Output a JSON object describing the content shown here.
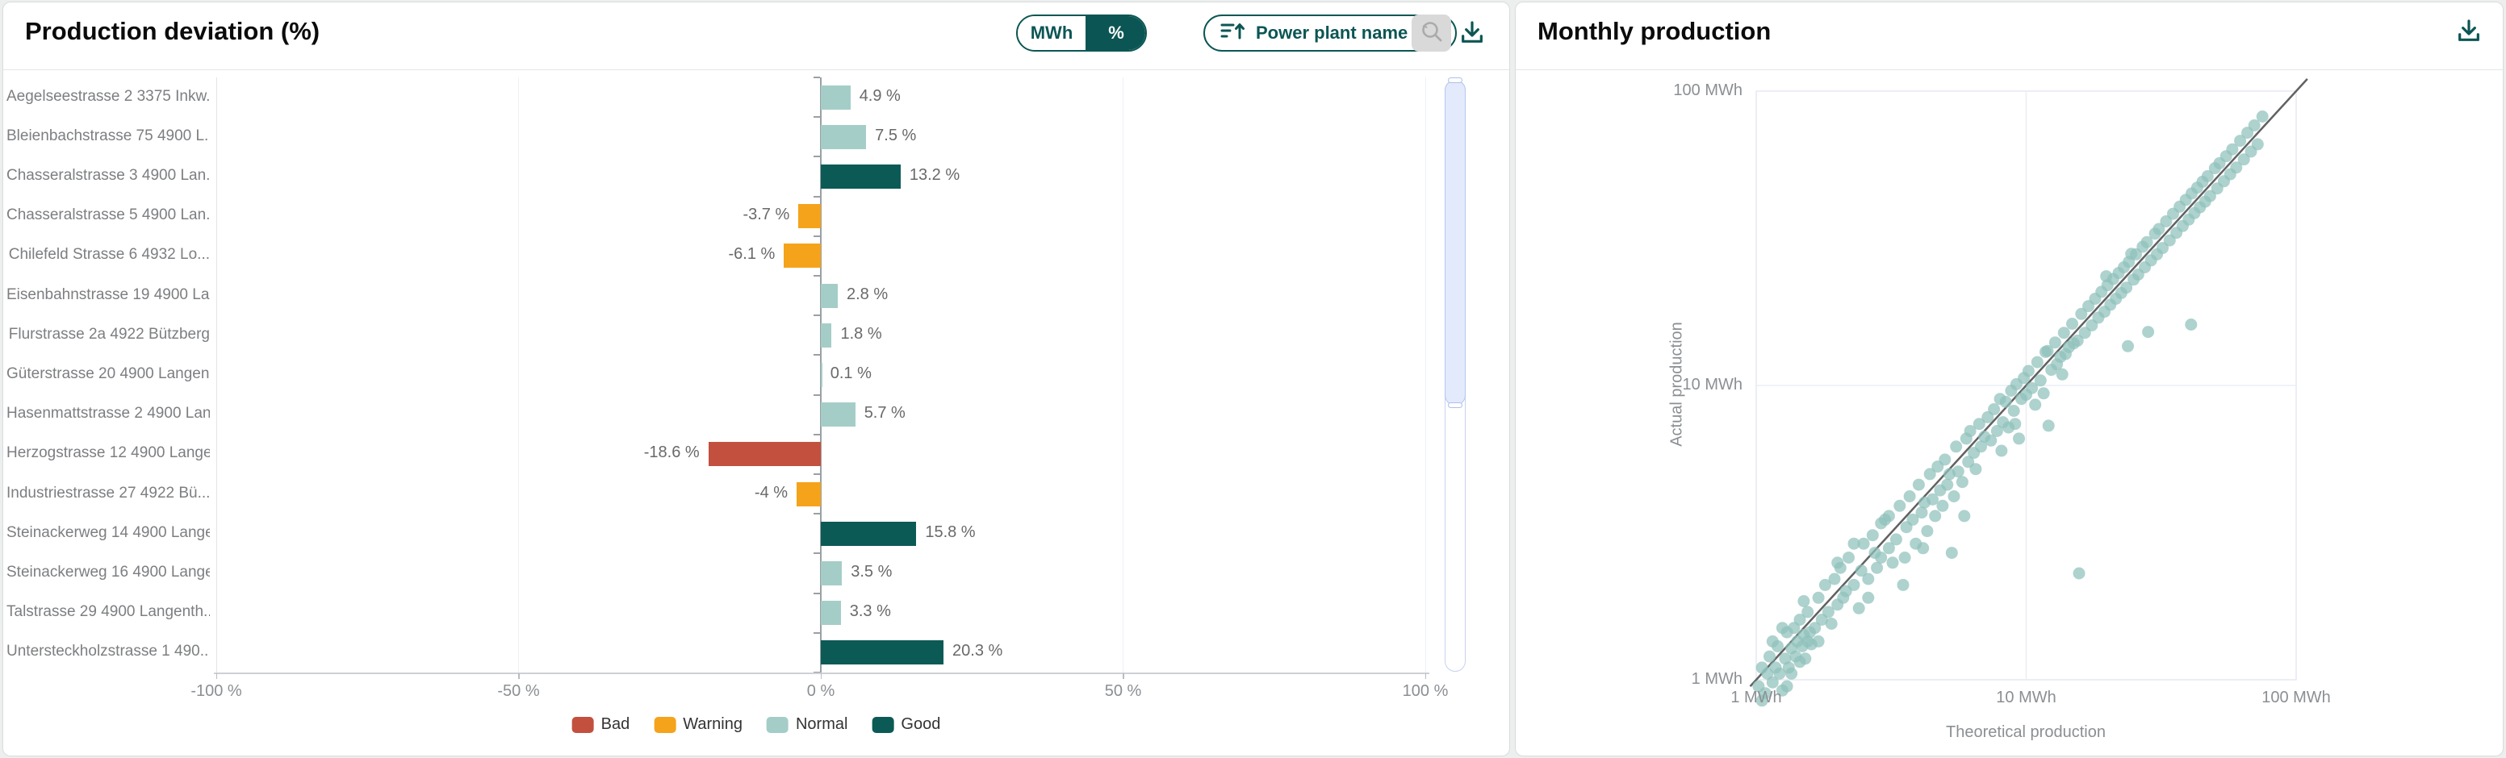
{
  "left_panel": {
    "title": "Production deviation (%)",
    "unit_toggle": {
      "options": [
        "MWh",
        "%"
      ],
      "selected": "%"
    },
    "sort_dropdown": {
      "label": "Power plant name"
    }
  },
  "right_panel": {
    "title": "Monthly production"
  },
  "chart_data": [
    {
      "type": "bar",
      "orientation": "horizontal",
      "title": "Production deviation (%)",
      "categories": [
        "Aegelseestrasse 2 3375 Inkw...",
        "Bleienbachstrasse 75 4900 L...",
        "Chasseralstrasse 3 4900 Lan...",
        "Chasseralstrasse 5 4900 Lan...",
        "Chilefeld Strasse 6 4932 Lo...",
        "Eisenbahnstrasse 19 4900 La...",
        "Flurstrasse 2a 4922 Bützberg",
        "Güterstrasse 20 4900 Langen...",
        "Hasenmattstrasse 2 4900 Lan...",
        "Herzogstrasse 12 4900 Lange...",
        "Industriestrasse 27 4922 Bü...",
        "Steinackerweg 14 4900 Lange...",
        "Steinackerweg 16 4900 Lange...",
        "Talstrasse 29 4900 Langenth...",
        "Untersteckholzstrasse 1 490..."
      ],
      "values": [
        4.9,
        7.5,
        13.2,
        -3.7,
        -6.1,
        2.8,
        1.8,
        0.1,
        5.7,
        -18.6,
        -4,
        15.8,
        3.5,
        3.3,
        20.3
      ],
      "labels": [
        "4.9 %",
        "7.5 %",
        "13.2 %",
        "-3.7 %",
        "-6.1 %",
        "2.8 %",
        "1.8 %",
        "0.1 %",
        "5.7 %",
        "-18.6 %",
        "-4 %",
        "15.8 %",
        "3.5 %",
        "3.3 %",
        "20.3 %"
      ],
      "color_key": [
        "normal",
        "normal",
        "good",
        "warning",
        "warning",
        "normal",
        "normal",
        "normal",
        "normal",
        "bad",
        "warning",
        "good",
        "normal",
        "normal",
        "good"
      ],
      "colors": {
        "bad": "#c3503f",
        "warning": "#f5a31b",
        "normal": "#a5cdc7",
        "good": "#0c5a56"
      },
      "legend": [
        {
          "label": "Bad",
          "color": "#c3503f"
        },
        {
          "label": "Warning",
          "color": "#f5a31b"
        },
        {
          "label": "Normal",
          "color": "#a5cdc7"
        },
        {
          "label": "Good",
          "color": "#0c5a56"
        }
      ],
      "xlim": [
        -100,
        100
      ],
      "x_ticks": [
        "-100 %",
        "-50 %",
        "0 %",
        "50 %",
        "100 %"
      ],
      "x_tick_values": [
        -100,
        -50,
        0,
        50,
        100
      ],
      "grid": "faint vertical"
    },
    {
      "type": "scatter",
      "title": "Monthly production",
      "xlabel": "Theoretical production",
      "ylabel": "Actual production",
      "x_scale": "log",
      "y_scale": "log",
      "xlim": [
        1,
        100
      ],
      "ylim": [
        1,
        100
      ],
      "x_ticks": [
        "1 MWh",
        "10 MWh",
        "100 MWh"
      ],
      "y_ticks": [
        "1 MWh",
        "10 MWh",
        "100 MWh"
      ],
      "x_tick_values": [
        1,
        10,
        100
      ],
      "y_tick_values": [
        1,
        10,
        100
      ],
      "reference_line": "y = x",
      "point_color": "#8fc1bb",
      "points": [
        [
          1.02,
          0.95
        ],
        [
          1.05,
          1.1
        ],
        [
          1.08,
          0.9
        ],
        [
          1.1,
          1.05
        ],
        [
          1.12,
          1.2
        ],
        [
          1.15,
          0.98
        ],
        [
          1.18,
          1.1
        ],
        [
          1.2,
          1.3
        ],
        [
          1.22,
          1.05
        ],
        [
          1.25,
          0.92
        ],
        [
          1.28,
          1.18
        ],
        [
          1.3,
          1.45
        ],
        [
          1.32,
          1.1
        ],
        [
          1.35,
          1.28
        ],
        [
          1.38,
          1.5
        ],
        [
          1.4,
          1.2
        ],
        [
          1.42,
          1.35
        ],
        [
          1.45,
          1.6
        ],
        [
          1.48,
          1.3
        ],
        [
          1.5,
          1.42
        ],
        [
          1.52,
          1.18
        ],
        [
          1.55,
          1.7
        ],
        [
          1.58,
          1.45
        ],
        [
          1.6,
          1.32
        ],
        [
          1.05,
          0.85
        ],
        [
          1.15,
          1.35
        ],
        [
          1.25,
          1.5
        ],
        [
          1.35,
          1.05
        ],
        [
          1.45,
          1.15
        ],
        [
          1.55,
          1.35
        ],
        [
          1.3,
          0.95
        ],
        [
          1.5,
          1.85
        ],
        [
          1.65,
          1.5
        ],
        [
          1.7,
          1.9
        ],
        [
          1.75,
          1.6
        ],
        [
          1.8,
          2.1
        ],
        [
          1.85,
          1.7
        ],
        [
          1.9,
          1.55
        ],
        [
          1.95,
          2.2
        ],
        [
          2.0,
          1.8
        ],
        [
          2.05,
          2.4
        ],
        [
          2.1,
          1.9
        ],
        [
          2.15,
          2.0
        ],
        [
          2.2,
          2.6
        ],
        [
          2.3,
          2.1
        ],
        [
          2.4,
          1.75
        ],
        [
          2.5,
          2.9
        ],
        [
          2.6,
          2.2
        ],
        [
          2.7,
          3.1
        ],
        [
          2.8,
          2.4
        ],
        [
          2.9,
          2.6
        ],
        [
          3.0,
          3.5
        ],
        [
          3.1,
          2.8
        ],
        [
          3.2,
          2.5
        ],
        [
          1.7,
          1.35
        ],
        [
          2.0,
          2.5
        ],
        [
          2.3,
          2.9
        ],
        [
          2.6,
          1.9
        ],
        [
          2.9,
          3.4
        ],
        [
          3.1,
          3.6
        ],
        [
          2.45,
          2.35
        ],
        [
          2.75,
          2.7
        ],
        [
          3.3,
          3.0
        ],
        [
          3.4,
          3.9
        ],
        [
          3.5,
          2.1
        ],
        [
          3.6,
          3.3
        ],
        [
          3.7,
          4.2
        ],
        [
          3.8,
          3.5
        ],
        [
          3.9,
          2.9
        ],
        [
          4.0,
          4.6
        ],
        [
          4.1,
          3.7
        ],
        [
          4.2,
          4.0
        ],
        [
          4.3,
          3.2
        ],
        [
          4.4,
          5.0
        ],
        [
          4.5,
          4.1
        ],
        [
          4.6,
          3.6
        ],
        [
          4.7,
          5.3
        ],
        [
          4.8,
          4.4
        ],
        [
          4.9,
          3.9
        ],
        [
          5.0,
          5.6
        ],
        [
          5.1,
          4.6
        ],
        [
          5.2,
          5.0
        ],
        [
          5.4,
          4.2
        ],
        [
          5.5,
          6.2
        ],
        [
          5.6,
          5.1
        ],
        [
          5.8,
          4.7
        ],
        [
          6.0,
          6.6
        ],
        [
          6.1,
          5.5
        ],
        [
          6.2,
          7.0
        ],
        [
          6.4,
          5.9
        ],
        [
          6.5,
          5.2
        ],
        [
          6.7,
          7.4
        ],
        [
          6.8,
          6.2
        ],
        [
          7.0,
          6.7
        ],
        [
          3.55,
          2.6
        ],
        [
          4.15,
          2.8
        ],
        [
          5.3,
          2.7
        ],
        [
          5.9,
          3.6
        ],
        [
          7.2,
          7.8
        ],
        [
          7.4,
          6.5
        ],
        [
          7.6,
          8.3
        ],
        [
          7.8,
          7.0
        ],
        [
          8.0,
          9.0
        ],
        [
          8.2,
          7.5
        ],
        [
          8.4,
          8.8
        ],
        [
          8.6,
          7.2
        ],
        [
          8.8,
          9.6
        ],
        [
          9.0,
          8.2
        ],
        [
          9.2,
          10.1
        ],
        [
          9.4,
          6.6
        ],
        [
          9.6,
          9.0
        ],
        [
          9.8,
          10.6
        ],
        [
          10.0,
          9.3
        ],
        [
          10.2,
          11.2
        ],
        [
          10.5,
          9.8
        ],
        [
          10.8,
          8.6
        ],
        [
          11.0,
          12.0
        ],
        [
          11.3,
          10.4
        ],
        [
          11.6,
          9.4
        ],
        [
          12.0,
          13.1
        ],
        [
          12.1,
          7.3
        ],
        [
          12.4,
          11.3
        ],
        [
          12.8,
          14.0
        ],
        [
          13.0,
          11.8
        ],
        [
          13.4,
          12.5
        ],
        [
          13.8,
          15.1
        ],
        [
          14.0,
          12.8
        ],
        [
          14.4,
          13.5
        ],
        [
          14.8,
          16.2
        ],
        [
          15.0,
          13.9
        ],
        [
          8.1,
          6.0
        ],
        [
          9.1,
          7.4
        ],
        [
          11.8,
          13.0
        ],
        [
          13.6,
          10.9
        ],
        [
          15.5,
          14.2
        ],
        [
          16.0,
          17.5
        ],
        [
          16.5,
          15.1
        ],
        [
          17.0,
          18.6
        ],
        [
          17.5,
          16.0
        ],
        [
          18.0,
          19.7
        ],
        [
          18.5,
          17.0
        ],
        [
          19.0,
          20.8
        ],
        [
          19.5,
          17.8
        ],
        [
          20.0,
          21.9
        ],
        [
          20.5,
          18.8
        ],
        [
          21.0,
          23.0
        ],
        [
          21.5,
          19.7
        ],
        [
          22.0,
          24.1
        ],
        [
          22.5,
          20.6
        ],
        [
          23.0,
          25.2
        ],
        [
          23.5,
          21.5
        ],
        [
          24.0,
          26.3
        ],
        [
          25.0,
          22.9
        ],
        [
          25.5,
          27.9
        ],
        [
          26.0,
          23.8
        ],
        [
          27.0,
          29.6
        ],
        [
          27.5,
          25.2
        ],
        [
          28.0,
          30.7
        ],
        [
          29.0,
          26.6
        ],
        [
          30.0,
          32.8
        ],
        [
          30.5,
          27.9
        ],
        [
          31.0,
          34.0
        ],
        [
          32.0,
          29.3
        ],
        [
          33.0,
          36.1
        ],
        [
          34.0,
          31.1
        ],
        [
          35.0,
          38.3
        ],
        [
          19.8,
          23.5
        ],
        [
          24.5,
          28.0
        ],
        [
          36,
          33
        ],
        [
          37,
          40.5
        ],
        [
          38,
          34.8
        ],
        [
          39,
          42.7
        ],
        [
          40,
          36.6
        ],
        [
          41,
          44.9
        ],
        [
          42,
          38.5
        ],
        [
          43,
          47
        ],
        [
          44,
          40.3
        ],
        [
          45,
          49.2
        ],
        [
          46,
          42.1
        ],
        [
          47,
          51.4
        ],
        [
          48,
          44
        ],
        [
          50,
          54.7
        ],
        [
          51,
          46.7
        ],
        [
          52,
          56.9
        ],
        [
          54,
          49.4
        ],
        [
          55,
          60.1
        ],
        [
          57,
          52.2
        ],
        [
          58,
          63.4
        ],
        [
          60,
          55
        ],
        [
          62,
          67.8
        ],
        [
          64,
          58.6
        ],
        [
          66,
          72.2
        ],
        [
          68,
          62.3
        ],
        [
          70,
          76.5
        ],
        [
          72,
          66
        ],
        [
          75,
          82
        ],
        [
          15.7,
          2.3
        ],
        [
          23.8,
          13.6
        ],
        [
          28.3,
          15.2
        ],
        [
          40.8,
          16.1
        ]
      ]
    }
  ]
}
